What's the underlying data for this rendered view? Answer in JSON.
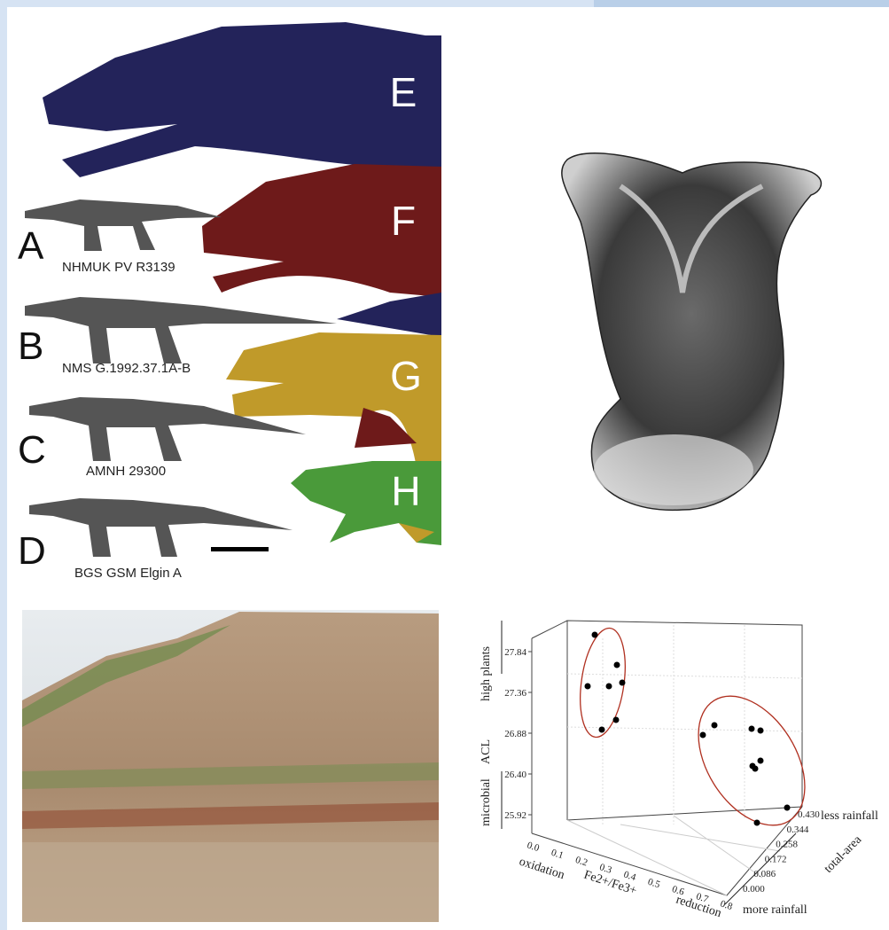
{
  "figure_a": {
    "labels": [
      {
        "letter": "E"
      },
      {
        "letter": "F"
      },
      {
        "letter": "G"
      },
      {
        "letter": "H"
      }
    ],
    "specimens": [
      {
        "letter": "A",
        "name": "NHMUK PV R3139"
      },
      {
        "letter": "B",
        "name": "NMS G.1992.37.1A-B"
      },
      {
        "letter": "C",
        "name": "AMNH 29300"
      },
      {
        "letter": "D",
        "name": "BGS GSM Elgin A"
      }
    ]
  },
  "plot": {
    "z_axis": {
      "title_top": "high plants",
      "title_mid": "ACL",
      "title_bottom": "microbial",
      "ticks": [
        "25.92",
        "26.40",
        "26.88",
        "27.36",
        "27.84"
      ]
    },
    "x_axis": {
      "title_left": "oxidation",
      "title_mid": "Fe2+/Fe3+",
      "title_right": "reduction",
      "ticks": [
        "0.0",
        "0.1",
        "0.2",
        "0.3",
        "0.4",
        "0.5",
        "0.6",
        "0.7",
        "0.8"
      ]
    },
    "y_axis": {
      "title_top": "less rainfall",
      "title_mid": "total-area",
      "title_bottom": "more rainfall",
      "ticks": [
        "0.000",
        "0.086",
        "0.172",
        "0.258",
        "0.344",
        "0.430"
      ]
    }
  }
}
